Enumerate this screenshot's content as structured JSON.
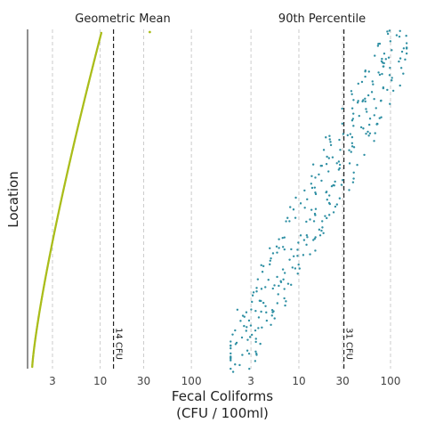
{
  "chart_data": {
    "type": "scatter",
    "facets": [
      {
        "title": "Geometric Mean",
        "point_color": "#aabd1a",
        "reference_line": {
          "x": 14,
          "label": "14 CFU"
        },
        "series": {
          "method": "sorted-per-location",
          "n": 320,
          "min": 1.8,
          "max": 10.3,
          "outliers": [
            35
          ]
        }
      },
      {
        "title": "90th Percentile",
        "point_color": "#2e8fa3",
        "reference_line": {
          "x": 31,
          "label": "31 CFU"
        },
        "series": {
          "method": "scatter-by-location",
          "n": 310,
          "min": 1.8,
          "max": 150
        }
      }
    ],
    "x_scale": "log10",
    "xlim": [
      1.6,
      200
    ],
    "x_ticks": [
      3,
      10,
      30,
      100
    ],
    "x_tick_labels": [
      "3",
      "10",
      "30",
      "100"
    ],
    "xlabel": "Fecal Coliforms",
    "xlabel_unit": "(CFU / 100ml)",
    "ylabel": "Location",
    "grid": "vertical-dashed",
    "legend": "none"
  }
}
